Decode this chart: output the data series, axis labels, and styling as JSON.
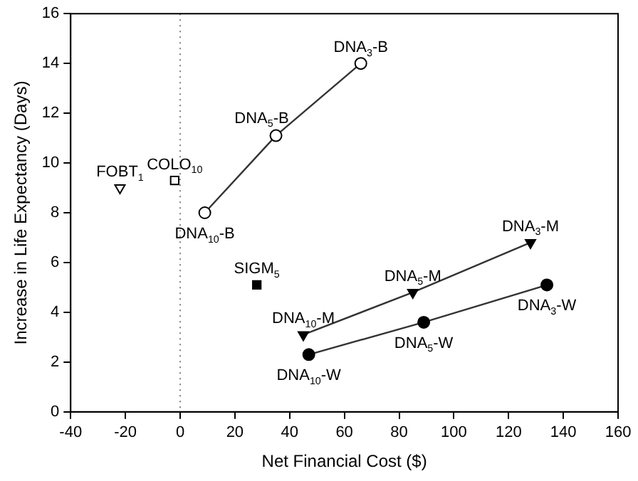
{
  "chart_data": {
    "type": "line",
    "xlabel": "Net Financial Cost ($)",
    "ylabel": "Increase in Life Expectancy (Days)",
    "xlim": [
      -40,
      160
    ],
    "xticks": [
      -40,
      -20,
      0,
      20,
      40,
      60,
      80,
      100,
      120,
      140,
      160
    ],
    "ylim": [
      0,
      16
    ],
    "yticks": [
      0,
      2,
      4,
      6,
      8,
      10,
      12,
      14,
      16
    ],
    "grid": false,
    "legend": false,
    "series": [
      {
        "type": "line",
        "marker": "circle",
        "color": "#ffffff",
        "x": [
          9,
          35,
          66
        ],
        "values": [
          8.0,
          11.1,
          14.0
        ]
      },
      {
        "type": "line",
        "marker": "triangle",
        "color": "#000000",
        "x": [
          45,
          85,
          128
        ],
        "values": [
          3.1,
          4.8,
          6.8
        ]
      },
      {
        "type": "line",
        "marker": "circle",
        "color": "#000000",
        "x": [
          47,
          89,
          134
        ],
        "values": [
          2.3,
          3.6,
          5.1
        ]
      },
      {
        "type": "scatter",
        "marker": "triangle",
        "color": "#ffffff",
        "x": [
          -22
        ],
        "values": [
          9.0
        ]
      },
      {
        "type": "scatter",
        "marker": "square",
        "color": "#ffffff",
        "x": [
          -2
        ],
        "values": [
          9.3
        ]
      },
      {
        "type": "scatter",
        "marker": "square",
        "color": "#000000",
        "x": [
          28
        ],
        "values": [
          5.1
        ]
      }
    ],
    "ref_lines": [
      {
        "axis": "x",
        "value": 0,
        "line_style": "dotted",
        "color": "#808080"
      }
    ],
    "annotations": [
      {
        "text": "DNA$_{10}$-B",
        "x": 9,
        "y": 8.0
      },
      {
        "text": "DNA$_{5}$-B",
        "x": 35,
        "y": 11.1
      },
      {
        "text": "DNA$_{3}$-B",
        "x": 66,
        "y": 14.0
      },
      {
        "text": "DNA$_{10}$-M",
        "x": 45,
        "y": 3.1
      },
      {
        "text": "DNA$_{5}$-M",
        "x": 85,
        "y": 4.8
      },
      {
        "text": "DNA$_{3}$-M",
        "x": 128,
        "y": 6.8
      },
      {
        "text": "DNA$_{10}$-W",
        "x": 47,
        "y": 2.3
      },
      {
        "text": "DNA$_{5}$-W",
        "x": 89,
        "y": 3.6
      },
      {
        "text": "DNA$_{3}$-W",
        "x": 134,
        "y": 5.1
      },
      {
        "text": "FOBT$_{1}$",
        "x": -22,
        "y": 9.0
      },
      {
        "text": "COLO$_{10}$",
        "x": -2,
        "y": 9.3
      },
      {
        "text": "SIGM$_{5}$",
        "x": 28,
        "y": 5.1
      }
    ]
  }
}
